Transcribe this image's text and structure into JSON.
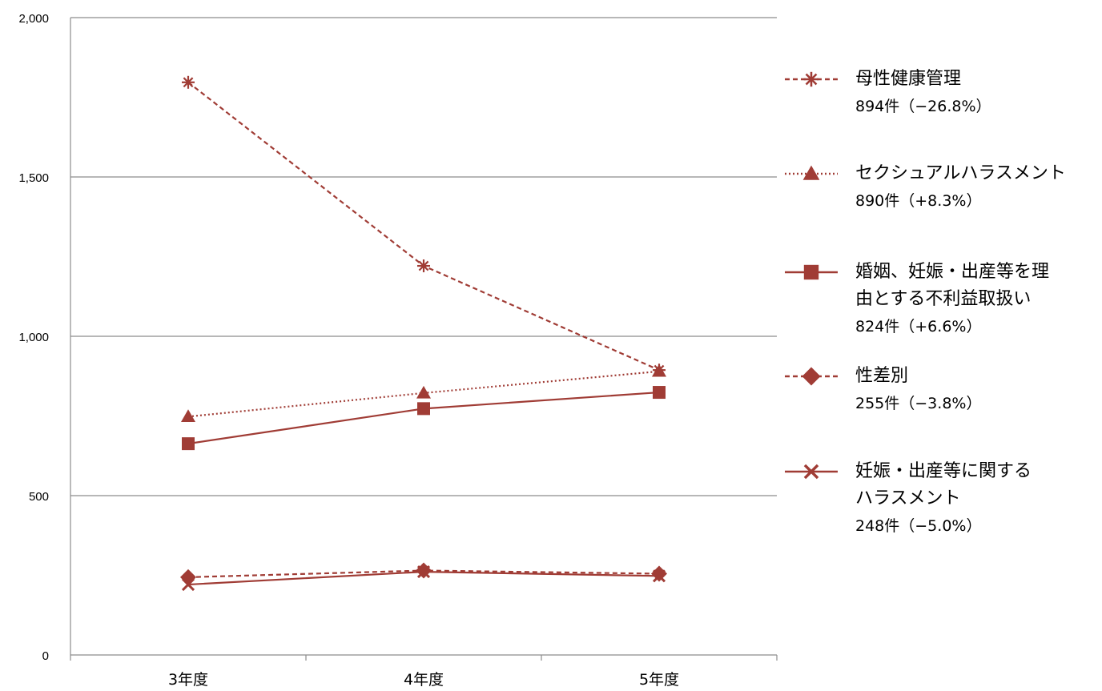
{
  "chart_data": {
    "type": "line",
    "categories": [
      "3年度",
      "4年度",
      "5年度"
    ],
    "ylim": [
      0,
      2000
    ],
    "yticks": [
      0,
      500,
      1000,
      1500,
      2000
    ],
    "ytick_labels": [
      "0",
      "500",
      "1,000",
      "1,500",
      "2,000"
    ],
    "grid": true,
    "legend_position": "right",
    "series": [
      {
        "name": "母性健康管理",
        "label_lines": [
          "母性健康管理"
        ],
        "detail": "894件（−26.8%）",
        "values": [
          1797,
          1221,
          894
        ],
        "color": "#A03C35",
        "dash": "dashed",
        "marker": "asterisk"
      },
      {
        "name": "セクシュアルハラスメント",
        "label_lines": [
          "セクシュアルハラスメント"
        ],
        "detail": "890件（+8.3%）",
        "values": [
          748,
          822,
          890
        ],
        "color": "#A03C35",
        "dash": "dotted",
        "marker": "triangle"
      },
      {
        "name": "婚姻、妊娠・出産等を理由とする不利益取扱い",
        "label_lines": [
          "婚姻、妊娠・出産等を理",
          "由とする不利益取扱い"
        ],
        "detail": "824件（+6.6%）",
        "values": [
          663,
          773,
          824
        ],
        "color": "#A03C35",
        "dash": "solid",
        "marker": "square"
      },
      {
        "name": "性差別",
        "label_lines": [
          "性差別"
        ],
        "detail": "255件（−3.8%）",
        "values": [
          244,
          265,
          255
        ],
        "color": "#A03C35",
        "dash": "dashed",
        "marker": "diamond"
      },
      {
        "name": "妊娠・出産等に関するハラスメント",
        "label_lines": [
          "妊娠・出産等に関する",
          "ハラスメント"
        ],
        "detail": "248件（−5.0%）",
        "values": [
          221,
          261,
          248
        ],
        "color": "#A03C35",
        "dash": "solid",
        "marker": "x"
      }
    ]
  }
}
